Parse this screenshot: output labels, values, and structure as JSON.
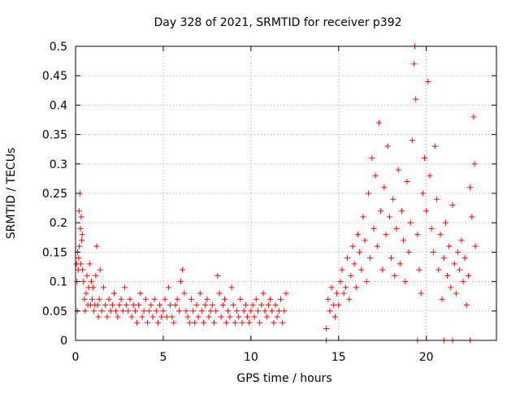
{
  "chart_data": {
    "type": "scatter",
    "title": "Day 328 of 2021, SRMTID for receiver p392",
    "xlabel": "GPS time / hours",
    "ylabel": "SRMTID / TECUs",
    "xlim": [
      0,
      24
    ],
    "ylim": [
      0,
      0.5
    ],
    "grid": true,
    "marker": "+",
    "series_color": "#ff0000",
    "x_ticks": [
      {
        "value": 0,
        "label": "0"
      },
      {
        "value": 5,
        "label": "5"
      },
      {
        "value": 10,
        "label": "10"
      },
      {
        "value": 15,
        "label": "15"
      },
      {
        "value": 20,
        "label": "20"
      }
    ],
    "y_ticks": [
      {
        "value": 0,
        "label": "0"
      },
      {
        "value": 0.05,
        "label": "0.05"
      },
      {
        "value": 0.1,
        "label": "0.1"
      },
      {
        "value": 0.15,
        "label": "0.15"
      },
      {
        "value": 0.2,
        "label": "0.2"
      },
      {
        "value": 0.25,
        "label": "0.25"
      },
      {
        "value": 0.3,
        "label": "0.3"
      },
      {
        "value": 0.35,
        "label": "0.35"
      },
      {
        "value": 0.4,
        "label": "0.4"
      },
      {
        "value": 0.45,
        "label": "0.45"
      },
      {
        "value": 0.5,
        "label": "0.5"
      }
    ],
    "series": [
      {
        "name": "SRMTID",
        "points": [
          [
            0.05,
            0.13
          ],
          [
            0.08,
            0.1
          ],
          [
            0.1,
            0.05
          ],
          [
            0.12,
            0.15
          ],
          [
            0.15,
            0.12
          ],
          [
            0.18,
            0.14
          ],
          [
            0.2,
            0.22
          ],
          [
            0.22,
            0.16
          ],
          [
            0.25,
            0.25
          ],
          [
            0.28,
            0.19
          ],
          [
            0.3,
            0.13
          ],
          [
            0.32,
            0.21
          ],
          [
            0.35,
            0.17
          ],
          [
            0.38,
            0.18
          ],
          [
            0.4,
            0.12
          ],
          [
            0.45,
            0.1
          ],
          [
            0.5,
            0.07
          ],
          [
            0.55,
            0.05
          ],
          [
            0.6,
            0.08
          ],
          [
            0.65,
            0.11
          ],
          [
            0.7,
            0.06
          ],
          [
            0.75,
            0.09
          ],
          [
            0.8,
            0.13
          ],
          [
            0.85,
            0.06
          ],
          [
            0.9,
            0.1
          ],
          [
            0.95,
            0.07
          ],
          [
            1.0,
            0.09
          ],
          [
            1.05,
            0.05
          ],
          [
            1.1,
            0.06
          ],
          [
            1.15,
            0.11
          ],
          [
            1.2,
            0.16
          ],
          [
            1.25,
            0.06
          ],
          [
            1.3,
            0.04
          ],
          [
            1.35,
            0.07
          ],
          [
            1.4,
            0.12
          ],
          [
            1.5,
            0.05
          ],
          [
            1.6,
            0.09
          ],
          [
            1.7,
            0.06
          ],
          [
            1.8,
            0.04
          ],
          [
            1.9,
            0.07
          ],
          [
            2.0,
            0.05
          ],
          [
            2.1,
            0.06
          ],
          [
            2.2,
            0.08
          ],
          [
            2.3,
            0.05
          ],
          [
            2.4,
            0.04
          ],
          [
            2.5,
            0.06
          ],
          [
            2.6,
            0.07
          ],
          [
            2.7,
            0.05
          ],
          [
            2.8,
            0.09
          ],
          [
            2.9,
            0.06
          ],
          [
            3.0,
            0.05
          ],
          [
            3.1,
            0.07
          ],
          [
            3.2,
            0.04
          ],
          [
            3.3,
            0.06
          ],
          [
            3.4,
            0.05
          ],
          [
            3.5,
            0.03
          ],
          [
            3.6,
            0.06
          ],
          [
            3.7,
            0.08
          ],
          [
            3.8,
            0.04
          ],
          [
            3.9,
            0.05
          ],
          [
            4.0,
            0.07
          ],
          [
            4.1,
            0.03
          ],
          [
            4.2,
            0.05
          ],
          [
            4.3,
            0.06
          ],
          [
            4.4,
            0.04
          ],
          [
            4.5,
            0.07
          ],
          [
            4.6,
            0.05
          ],
          [
            4.7,
            0.03
          ],
          [
            4.8,
            0.06
          ],
          [
            4.9,
            0.04
          ],
          [
            5.0,
            0.05
          ],
          [
            5.1,
            0.07
          ],
          [
            5.2,
            0.04
          ],
          [
            5.3,
            0.09
          ],
          [
            5.4,
            0.06
          ],
          [
            5.5,
            0.04
          ],
          [
            5.6,
            0.03
          ],
          [
            5.7,
            0.06
          ],
          [
            5.8,
            0.07
          ],
          [
            5.9,
            0.05
          ],
          [
            6.0,
            0.1
          ],
          [
            6.1,
            0.12
          ],
          [
            6.2,
            0.08
          ],
          [
            6.3,
            0.05
          ],
          [
            6.4,
            0.04
          ],
          [
            6.5,
            0.03
          ],
          [
            6.6,
            0.07
          ],
          [
            6.7,
            0.05
          ],
          [
            6.8,
            0.03
          ],
          [
            6.9,
            0.06
          ],
          [
            7.0,
            0.04
          ],
          [
            7.1,
            0.08
          ],
          [
            7.2,
            0.05
          ],
          [
            7.3,
            0.03
          ],
          [
            7.4,
            0.06
          ],
          [
            7.5,
            0.07
          ],
          [
            7.6,
            0.04
          ],
          [
            7.7,
            0.05
          ],
          [
            7.8,
            0.06
          ],
          [
            7.9,
            0.03
          ],
          [
            8.0,
            0.05
          ],
          [
            8.1,
            0.11
          ],
          [
            8.2,
            0.08
          ],
          [
            8.3,
            0.04
          ],
          [
            8.4,
            0.06
          ],
          [
            8.5,
            0.07
          ],
          [
            8.6,
            0.03
          ],
          [
            8.7,
            0.05
          ],
          [
            8.8,
            0.04
          ],
          [
            8.9,
            0.09
          ],
          [
            9.0,
            0.06
          ],
          [
            9.1,
            0.03
          ],
          [
            9.2,
            0.05
          ],
          [
            9.3,
            0.04
          ],
          [
            9.4,
            0.07
          ],
          [
            9.5,
            0.03
          ],
          [
            9.6,
            0.05
          ],
          [
            9.7,
            0.06
          ],
          [
            9.8,
            0.04
          ],
          [
            9.9,
            0.03
          ],
          [
            10.0,
            0.05
          ],
          [
            10.1,
            0.06
          ],
          [
            10.2,
            0.04
          ],
          [
            10.3,
            0.07
          ],
          [
            10.4,
            0.05
          ],
          [
            10.5,
            0.03
          ],
          [
            10.6,
            0.06
          ],
          [
            10.7,
            0.08
          ],
          [
            10.8,
            0.05
          ],
          [
            10.9,
            0.04
          ],
          [
            11.0,
            0.06
          ],
          [
            11.1,
            0.07
          ],
          [
            11.2,
            0.05
          ],
          [
            11.3,
            0.03
          ],
          [
            11.4,
            0.06
          ],
          [
            11.5,
            0.04
          ],
          [
            11.6,
            0.05
          ],
          [
            11.7,
            0.07
          ],
          [
            11.8,
            0.03
          ],
          [
            11.9,
            0.05
          ],
          [
            12.0,
            0.08
          ],
          [
            14.3,
            0.02
          ],
          [
            14.4,
            0.07
          ],
          [
            14.5,
            0.05
          ],
          [
            14.6,
            0.09
          ],
          [
            14.7,
            0.06
          ],
          [
            14.8,
            0.04
          ],
          [
            14.9,
            0.08
          ],
          [
            15.0,
            0.06
          ],
          [
            15.1,
            0.1
          ],
          [
            15.2,
            0.12
          ],
          [
            15.3,
            0.08
          ],
          [
            15.4,
            0.09
          ],
          [
            15.5,
            0.14
          ],
          [
            15.6,
            0.07
          ],
          [
            15.7,
            0.11
          ],
          [
            15.8,
            0.16
          ],
          [
            15.9,
            0.13
          ],
          [
            16.0,
            0.09
          ],
          [
            16.1,
            0.18
          ],
          [
            16.2,
            0.15
          ],
          [
            16.3,
            0.12
          ],
          [
            16.4,
            0.21
          ],
          [
            16.5,
            0.17
          ],
          [
            16.6,
            0.1
          ],
          [
            16.7,
            0.25
          ],
          [
            16.8,
            0.14
          ],
          [
            16.9,
            0.31
          ],
          [
            17.0,
            0.19
          ],
          [
            17.1,
            0.28
          ],
          [
            17.2,
            0.16
          ],
          [
            17.3,
            0.37
          ],
          [
            17.4,
            0.22
          ],
          [
            17.5,
            0.12
          ],
          [
            17.6,
            0.26
          ],
          [
            17.7,
            0.18
          ],
          [
            17.8,
            0.33
          ],
          [
            17.9,
            0.21
          ],
          [
            18.0,
            0.14
          ],
          [
            18.1,
            0.24
          ],
          [
            18.2,
            0.11
          ],
          [
            18.3,
            0.19
          ],
          [
            18.4,
            0.29
          ],
          [
            18.5,
            0.13
          ],
          [
            18.6,
            0.22
          ],
          [
            18.7,
            0.17
          ],
          [
            18.8,
            0.1
          ],
          [
            18.9,
            0.27
          ],
          [
            19.0,
            0.15
          ],
          [
            19.1,
            0.2
          ],
          [
            19.2,
            0.34
          ],
          [
            19.3,
            0.47
          ],
          [
            19.35,
            0.5
          ],
          [
            19.4,
            0.41
          ],
          [
            19.5,
            0.18
          ],
          [
            19.6,
            0.12
          ],
          [
            19.7,
            0.08
          ],
          [
            19.8,
            0.25
          ],
          [
            19.9,
            0.31
          ],
          [
            20.0,
            0.22
          ],
          [
            20.1,
            0.44
          ],
          [
            20.2,
            0.28
          ],
          [
            20.3,
            0.19
          ],
          [
            20.4,
            0.15
          ],
          [
            20.5,
            0.33
          ],
          [
            20.6,
            0.24
          ],
          [
            20.7,
            0.12
          ],
          [
            20.8,
            0.18
          ],
          [
            20.9,
            0.07
          ],
          [
            21.0,
            0.14
          ],
          [
            21.1,
            0.2
          ],
          [
            21.2,
            0.11
          ],
          [
            21.3,
            0.16
          ],
          [
            21.4,
            0.09
          ],
          [
            21.5,
            0.23
          ],
          [
            21.6,
            0.13
          ],
          [
            21.7,
            0.08
          ],
          [
            21.8,
            0.15
          ],
          [
            21.9,
            0.12
          ],
          [
            22.0,
            0.17
          ],
          [
            22.1,
            0.1
          ],
          [
            22.2,
            0.14
          ],
          [
            22.3,
            0.06
          ],
          [
            22.4,
            0.11
          ],
          [
            22.5,
            0.26
          ],
          [
            22.6,
            0.21
          ],
          [
            22.7,
            0.38
          ],
          [
            22.75,
            0.3
          ],
          [
            22.8,
            0.16
          ],
          [
            19.5,
            0.0
          ],
          [
            21.0,
            0.0
          ],
          [
            21.5,
            0.0
          ],
          [
            22.5,
            0.0
          ],
          [
            14.3,
            0.0
          ]
        ]
      }
    ]
  }
}
